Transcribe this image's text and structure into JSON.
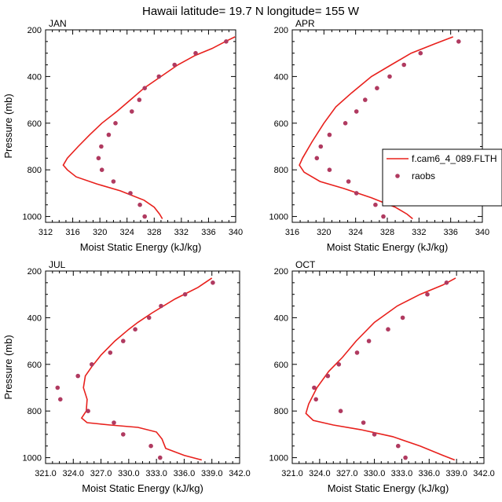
{
  "figure": {
    "title": "Hawaii  latitude= 19.7 N longitude= 155 W"
  },
  "legend": {
    "model_label": "f.cam6_4_089.FLTH",
    "obs_label": "raobs"
  },
  "colors": {
    "model_line": "#e8201c",
    "obs_marker": "#b03a60"
  },
  "chart_data": [
    {
      "type": "line",
      "panel": "JAN",
      "title": "JAN",
      "xlabel": "Moist Static Energy (kJ/kg)",
      "ylabel": "Pressure (mb)",
      "xlim": [
        312,
        340
      ],
      "ylim": [
        1025,
        200
      ],
      "xticks": [
        "312",
        "316",
        "320",
        "324",
        "328",
        "332",
        "336",
        "340"
      ],
      "yticks": [
        "200",
        "400",
        "600",
        "800",
        "1000"
      ],
      "series": [
        {
          "name": "f.cam6_4_089.FLTH",
          "points": [
            [
              339.9,
              230
            ],
            [
              338.5,
              250
            ],
            [
              336.5,
              280
            ],
            [
              334.0,
              310
            ],
            [
              331.5,
              350
            ],
            [
              329.0,
              400
            ],
            [
              326.5,
              450
            ],
            [
              324.5,
              500
            ],
            [
              322.5,
              550
            ],
            [
              320.3,
              600
            ],
            [
              318.5,
              650
            ],
            [
              316.8,
              700
            ],
            [
              315.2,
              750
            ],
            [
              314.6,
              780
            ],
            [
              315.2,
              800
            ],
            [
              316.5,
              830
            ],
            [
              319.5,
              860
            ],
            [
              323.0,
              890
            ],
            [
              326.5,
              930
            ],
            [
              328.0,
              960
            ],
            [
              328.8,
              990
            ],
            [
              329.2,
              1010
            ]
          ]
        },
        {
          "name": "raobs",
          "points": [
            [
              338.6,
              250
            ],
            [
              334.1,
              300
            ],
            [
              331.0,
              350
            ],
            [
              328.7,
              400
            ],
            [
              326.6,
              450
            ],
            [
              325.8,
              500
            ],
            [
              324.7,
              550
            ],
            [
              322.3,
              600
            ],
            [
              321.3,
              650
            ],
            [
              320.2,
              700
            ],
            [
              319.8,
              750
            ],
            [
              320.3,
              800
            ],
            [
              322.0,
              850
            ],
            [
              324.5,
              900
            ],
            [
              325.9,
              950
            ],
            [
              326.6,
              1000
            ]
          ]
        }
      ]
    },
    {
      "type": "line",
      "panel": "APR",
      "title": "APR",
      "xlabel": "Moist Static Energy (kJ/kg)",
      "ylabel": "",
      "xlim": [
        316,
        340
      ],
      "ylim": [
        1025,
        200
      ],
      "xticks": [
        "316",
        "320",
        "324",
        "328",
        "332",
        "336",
        "340"
      ],
      "yticks": [
        "200",
        "400",
        "600",
        "800",
        "1000"
      ],
      "series": [
        {
          "name": "f.cam6_4_089.FLTH",
          "points": [
            [
              336.3,
              230
            ],
            [
              334.0,
              260
            ],
            [
              331.0,
              300
            ],
            [
              328.5,
              350
            ],
            [
              326.0,
              400
            ],
            [
              323.5,
              470
            ],
            [
              321.5,
              530
            ],
            [
              320.0,
              600
            ],
            [
              318.5,
              680
            ],
            [
              317.3,
              750
            ],
            [
              316.9,
              780
            ],
            [
              317.5,
              810
            ],
            [
              319.5,
              850
            ],
            [
              322.5,
              880
            ],
            [
              326.0,
              920
            ],
            [
              329.0,
              960
            ],
            [
              330.5,
              990
            ],
            [
              331.2,
              1010
            ]
          ]
        },
        {
          "name": "raobs",
          "points": [
            [
              337.0,
              250
            ],
            [
              332.2,
              300
            ],
            [
              330.1,
              350
            ],
            [
              328.3,
              400
            ],
            [
              326.7,
              450
            ],
            [
              325.2,
              500
            ],
            [
              324.1,
              550
            ],
            [
              322.7,
              600
            ],
            [
              320.7,
              650
            ],
            [
              319.6,
              700
            ],
            [
              319.1,
              750
            ],
            [
              320.7,
              800
            ],
            [
              323.1,
              850
            ],
            [
              324.1,
              900
            ],
            [
              326.5,
              950
            ],
            [
              327.5,
              1000
            ]
          ]
        }
      ]
    },
    {
      "type": "line",
      "panel": "JUL",
      "title": "JUL",
      "xlabel": "Moist Static Energy (kJ/kg)",
      "ylabel": "Pressure (mb)",
      "xlim": [
        321,
        342
      ],
      "ylim": [
        1025,
        200
      ],
      "xticks": [
        "321.0",
        "324.0",
        "327.0",
        "330.0",
        "333.0",
        "336.0",
        "339.0",
        "342.0"
      ],
      "yticks": [
        "200",
        "400",
        "600",
        "800",
        "1000"
      ],
      "series": [
        {
          "name": "f.cam6_4_089.FLTH",
          "points": [
            [
              339.0,
              230
            ],
            [
              337.5,
              270
            ],
            [
              335.0,
              320
            ],
            [
              332.5,
              380
            ],
            [
              331.0,
              420
            ],
            [
              330.0,
              450
            ],
            [
              328.5,
              500
            ],
            [
              327.0,
              560
            ],
            [
              326.0,
              610
            ],
            [
              325.3,
              650
            ],
            [
              325.1,
              700
            ],
            [
              325.5,
              750
            ],
            [
              325.4,
              800
            ],
            [
              324.9,
              830
            ],
            [
              325.5,
              850
            ],
            [
              328.0,
              860
            ],
            [
              331.0,
              870
            ],
            [
              333.0,
              890
            ],
            [
              333.6,
              920
            ],
            [
              334.0,
              960
            ],
            [
              336.0,
              990
            ],
            [
              337.9,
              1010
            ]
          ]
        },
        {
          "name": "raobs",
          "points": [
            [
              339.1,
              250
            ],
            [
              336.1,
              300
            ],
            [
              333.5,
              350
            ],
            [
              332.2,
              400
            ],
            [
              330.7,
              450
            ],
            [
              329.4,
              500
            ],
            [
              328.0,
              550
            ],
            [
              326.0,
              600
            ],
            [
              324.5,
              650
            ],
            [
              322.3,
              700
            ],
            [
              322.6,
              750
            ],
            [
              325.6,
              800
            ],
            [
              328.4,
              850
            ],
            [
              329.4,
              900
            ],
            [
              332.4,
              950
            ],
            [
              333.4,
              1000
            ]
          ]
        }
      ]
    },
    {
      "type": "line",
      "panel": "OCT",
      "title": "OCT",
      "xlabel": "Moist Static Energy (kJ/kg)",
      "ylabel": "",
      "xlim": [
        321,
        342
      ],
      "ylim": [
        1025,
        200
      ],
      "xticks": [
        "321.0",
        "324.0",
        "327.0",
        "330.0",
        "333.0",
        "336.0",
        "339.0",
        "342.0"
      ],
      "yticks": [
        "200",
        "400",
        "600",
        "800",
        "1000"
      ],
      "series": [
        {
          "name": "f.cam6_4_089.FLTH",
          "points": [
            [
              338.9,
              230
            ],
            [
              337.5,
              260
            ],
            [
              335.0,
              300
            ],
            [
              332.5,
              350
            ],
            [
              330.0,
              420
            ],
            [
              328.0,
              500
            ],
            [
              326.5,
              570
            ],
            [
              325.0,
              630
            ],
            [
              323.7,
              700
            ],
            [
              322.8,
              770
            ],
            [
              322.5,
              810
            ],
            [
              323.3,
              840
            ],
            [
              325.5,
              860
            ],
            [
              328.5,
              880
            ],
            [
              332.0,
              910
            ],
            [
              335.0,
              950
            ],
            [
              337.5,
              990
            ],
            [
              338.8,
              1010
            ]
          ]
        },
        {
          "name": "raobs",
          "points": [
            [
              337.9,
              250
            ],
            [
              335.8,
              300
            ],
            [
              333.1,
              400
            ],
            [
              331.5,
              450
            ],
            [
              329.4,
              500
            ],
            [
              328.1,
              550
            ],
            [
              326.1,
              600
            ],
            [
              324.9,
              650
            ],
            [
              323.4,
              700
            ],
            [
              323.6,
              750
            ],
            [
              326.3,
              800
            ],
            [
              328.8,
              850
            ],
            [
              330.0,
              900
            ],
            [
              332.6,
              950
            ],
            [
              333.4,
              1000
            ]
          ]
        }
      ]
    }
  ]
}
